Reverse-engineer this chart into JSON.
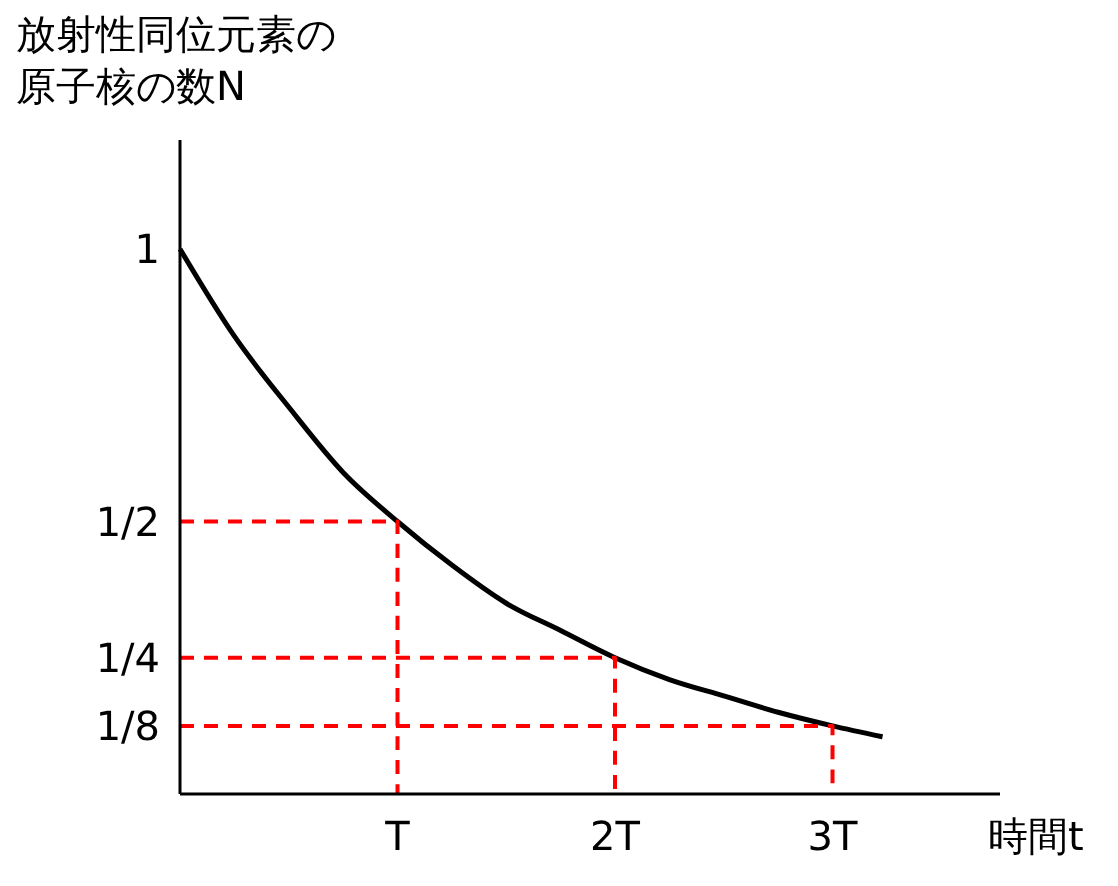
{
  "chart_data": {
    "type": "line",
    "ylabel": "放射性同位元素の原子核の数N",
    "xlabel": "時間t",
    "xlim": [
      0,
      3.77
    ],
    "ylim": [
      0,
      1.2
    ],
    "xticks": [
      {
        "value": 1,
        "label": "T"
      },
      {
        "value": 2,
        "label": "2T"
      },
      {
        "value": 3,
        "label": "3T"
      }
    ],
    "yticks": [
      {
        "value": 1,
        "label": "1"
      },
      {
        "value": 0.5,
        "label": "1/2"
      },
      {
        "value": 0.25,
        "label": "1/4"
      },
      {
        "value": 0.125,
        "label": "1/8"
      }
    ],
    "grid": false,
    "marker": "none",
    "series": [
      {
        "color": "#000000",
        "line_style": "solid",
        "x": [
          0,
          0.25,
          0.5,
          0.75,
          1,
          1.25,
          1.5,
          1.75,
          2,
          2.25,
          2.5,
          2.75,
          3,
          3.23
        ],
        "values": [
          1,
          0.84,
          0.71,
          0.59,
          0.5,
          0.42,
          0.35,
          0.3,
          0.25,
          0.21,
          0.18,
          0.15,
          0.125,
          0.105
        ]
      },
      {
        "color": "#ff0000",
        "line_style": "dashed",
        "x": [
          0,
          1,
          1
        ],
        "values": [
          0.5,
          0.5,
          0
        ]
      },
      {
        "color": "#ff0000",
        "line_style": "dashed",
        "x": [
          0,
          2,
          2
        ],
        "values": [
          0.25,
          0.25,
          0
        ]
      },
      {
        "color": "#ff0000",
        "line_style": "dashed",
        "x": [
          0,
          3,
          3
        ],
        "values": [
          0.125,
          0.125,
          0
        ]
      }
    ]
  }
}
